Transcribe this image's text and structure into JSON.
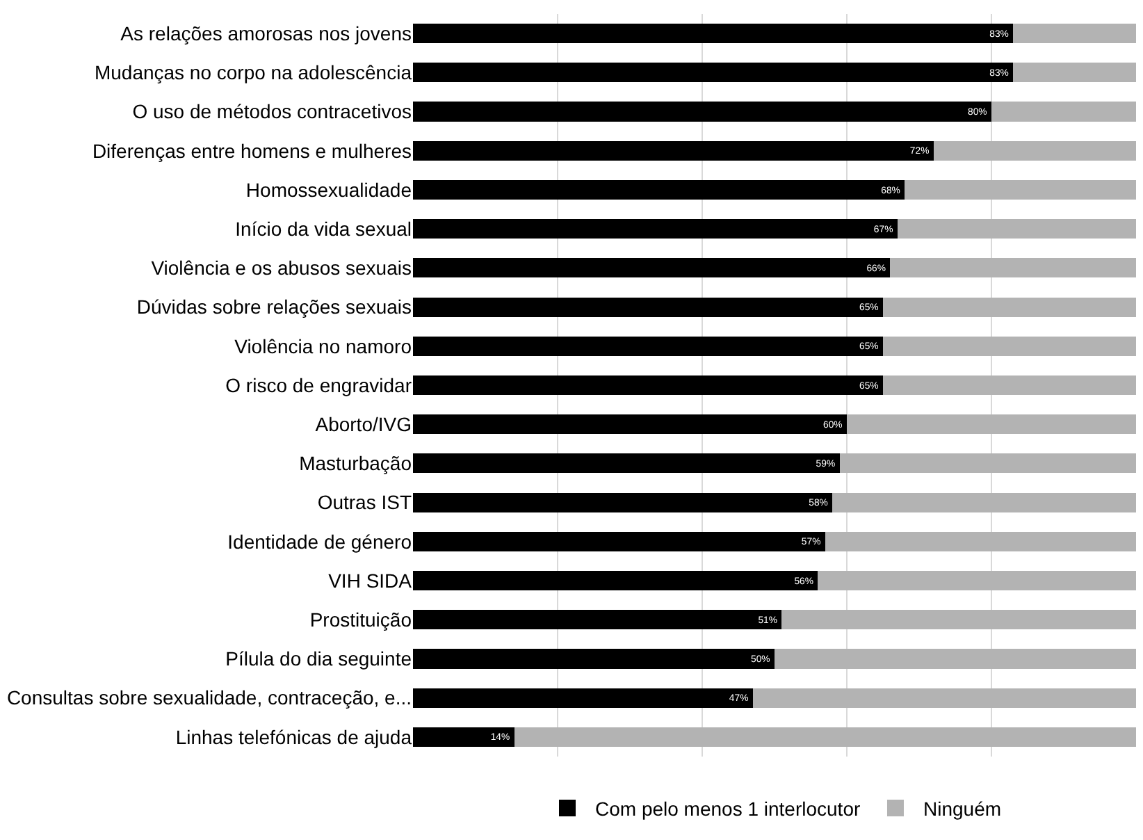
{
  "chart_data": {
    "type": "bar",
    "orientation": "horizontal",
    "stacked": true,
    "categories": [
      "As relações amorosas nos jovens",
      "Mudanças no corpo na adolescência",
      "O uso de métodos contracetivos",
      "Diferenças entre homens e mulheres",
      "Homossexualidade",
      "Início da vida sexual",
      "Violência e os abusos sexuais",
      "Dúvidas sobre relações sexuais",
      "Violência no namoro",
      "O risco de engravidar",
      "Aborto/IVG",
      "Masturbação",
      "Outras IST",
      "Identidade de género",
      "VIH SIDA",
      "Prostituição",
      "Pílula do dia seguinte",
      "Consultas sobre sexualidade, contraceção, e...",
      "Linhas telefónicas de ajuda"
    ],
    "series": [
      {
        "name": "Com pelo menos 1 interlocutor",
        "color": "#000000",
        "values": [
          83,
          83,
          80,
          72,
          68,
          67,
          66,
          65,
          65,
          65,
          60,
          59,
          58,
          57,
          56,
          51,
          50,
          47,
          14
        ],
        "value_labels": [
          "83%",
          "83%",
          "80%",
          "72%",
          "68%",
          "67%",
          "66%",
          "65%",
          "65%",
          "65%",
          "60%",
          "59%",
          "58%",
          "57%",
          "56%",
          "51%",
          "50%",
          "47%",
          "14%"
        ]
      },
      {
        "name": "Ninguém",
        "color": "#b3b3b3",
        "values": [
          17,
          17,
          20,
          28,
          32,
          33,
          34,
          35,
          35,
          35,
          40,
          41,
          42,
          43,
          44,
          49,
          50,
          53,
          86
        ]
      }
    ],
    "xlim": [
      0,
      100
    ],
    "xticks": [
      {
        "value": 20,
        "label": null
      },
      {
        "value": 40,
        "label": null
      },
      {
        "value": 60,
        "label": null
      },
      {
        "value": 80,
        "label": null
      }
    ],
    "tick_labels": "y",
    "grid": "x",
    "legend": "bottom"
  }
}
